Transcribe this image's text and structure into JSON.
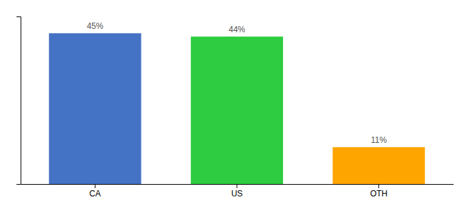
{
  "chart_data": {
    "type": "bar",
    "categories": [
      "CA",
      "US",
      "OTH"
    ],
    "values": [
      45,
      44,
      11
    ],
    "value_labels": [
      "45%",
      "44%",
      "11%"
    ],
    "data_labels": true,
    "colors": [
      "#4472C4",
      "#2ECC40",
      "#FFA500"
    ],
    "ylim": [
      0,
      50
    ],
    "yticks": [],
    "tick_labels": "x",
    "grid": false
  }
}
